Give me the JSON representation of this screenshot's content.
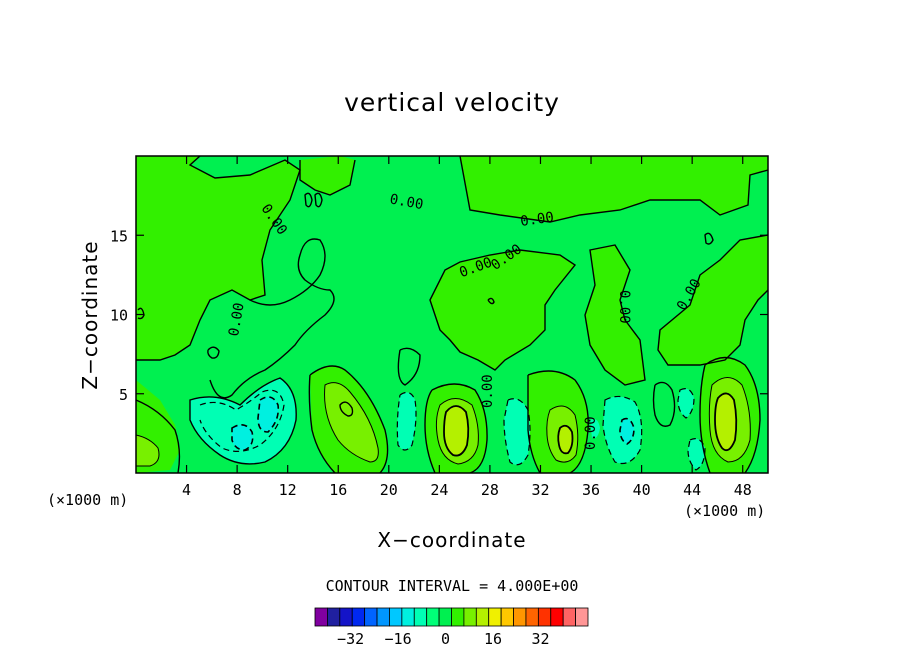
{
  "chart_data": {
    "type": "heatmap",
    "title": "vertical velocity",
    "xlabel": "X−coordinate",
    "ylabel": "Z−coordinate",
    "x_unit_left": "(×1000 m)",
    "x_unit_right": "(×1000 m)",
    "xlim": [
      0,
      50
    ],
    "ylim": [
      0,
      20
    ],
    "x_ticks": [
      4,
      8,
      12,
      16,
      20,
      24,
      28,
      32,
      36,
      40,
      44,
      48
    ],
    "y_ticks": [
      5,
      10,
      15
    ],
    "contour_interval_text": "CONTOUR INTERVAL = 4.000E+00",
    "zero_contour_label": "0.00",
    "grid": false,
    "colorbar": {
      "min": -40,
      "max": 40,
      "step": 4,
      "tick_labels": [
        "−32",
        "−16",
        "0",
        "16",
        "32"
      ],
      "tick_values": [
        -32,
        -16,
        0,
        16,
        32
      ],
      "colors": [
        "#8000a0",
        "#2020a0",
        "#1414c8",
        "#0028f0",
        "#0064ff",
        "#0096ff",
        "#00c8ff",
        "#00f0e0",
        "#00ffb4",
        "#00ff78",
        "#00f050",
        "#32f000",
        "#78f000",
        "#b4f000",
        "#f0f000",
        "#ffc800",
        "#ff9600",
        "#ff6400",
        "#ff3200",
        "#ff0000",
        "#ff6464",
        "#ff9696"
      ]
    },
    "max_regions": [
      {
        "x": 16.5,
        "z": 3.2,
        "value": 8
      },
      {
        "x": 25.5,
        "z": 3.2,
        "value": 10
      },
      {
        "x": 33.8,
        "z": 2.0,
        "value": 8
      },
      {
        "x": 46.4,
        "z": 3.5,
        "value": 12
      },
      {
        "x": 0.8,
        "z": 1.2,
        "value": 6
      }
    ],
    "min_regions": [
      {
        "x": 8.5,
        "z": 2.4,
        "value": -6
      },
      {
        "x": 10.5,
        "z": 3.5,
        "value": -6
      },
      {
        "x": 38.8,
        "z": 2.8,
        "value": -4
      },
      {
        "x": 30.5,
        "z": 2.8,
        "value": -4
      }
    ]
  }
}
